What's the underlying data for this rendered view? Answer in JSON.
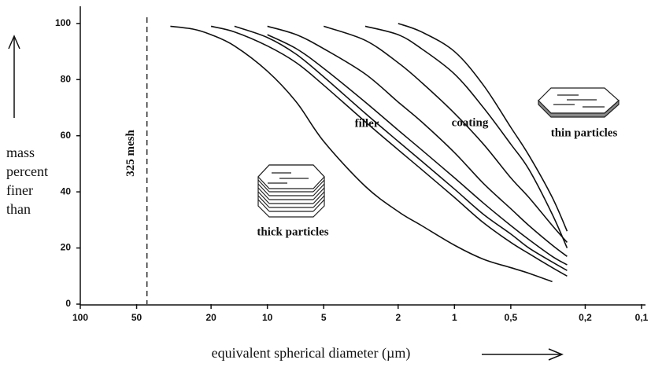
{
  "chart_data": {
    "type": "line",
    "xlabel": "equivalent spherical diameter (µm)",
    "ylabel": [
      "mass",
      "percent",
      "finer",
      "than"
    ],
    "log_x": true,
    "xlim": [
      100,
      0.1
    ],
    "ylim": [
      0,
      105
    ],
    "xticks": [
      100,
      50,
      20,
      10,
      5,
      2,
      1,
      {
        "value": 0.5,
        "label": "0,5"
      },
      {
        "value": 0.2,
        "label": "0,2"
      },
      {
        "value": 0.1,
        "label": "0,1"
      }
    ],
    "yticks": [
      0,
      20,
      40,
      60,
      80,
      100
    ],
    "mesh_line": {
      "x": 44,
      "label": "325 mesh"
    },
    "annotations": [
      "filler",
      "coating",
      "thin particles",
      "thick particles"
    ],
    "x": [
      33,
      25,
      20,
      15,
      10,
      7,
      5,
      3,
      2,
      1.5,
      1,
      0.7,
      0.5,
      0.4,
      0.3,
      0.25
    ],
    "series": [
      {
        "color": "#111",
        "values": [
          99,
          98,
          96,
          92,
          83,
          72,
          58,
          42,
          33,
          28,
          21,
          16,
          13,
          11,
          8,
          null
        ]
      },
      {
        "color": "#111",
        "values": [
          null,
          null,
          99,
          97,
          92,
          86,
          78,
          65,
          55,
          48,
          38,
          29,
          22,
          18,
          13,
          10
        ]
      },
      {
        "color": "#111",
        "values": [
          null,
          null,
          null,
          99,
          95,
          89,
          81,
          68,
          58,
          51,
          41,
          32,
          25,
          20,
          15,
          12
        ]
      },
      {
        "color": "#111",
        "values": [
          null,
          null,
          null,
          null,
          96,
          91,
          84,
          72,
          62,
          55,
          45,
          36,
          28,
          23,
          17,
          14
        ]
      },
      {
        "color": "#111",
        "values": [
          null,
          null,
          null,
          null,
          99,
          96,
          91,
          82,
          72,
          65,
          54,
          43,
          34,
          28,
          21,
          17
        ]
      },
      {
        "color": "#111",
        "values": [
          null,
          null,
          null,
          null,
          null,
          null,
          99,
          94,
          86,
          79,
          68,
          57,
          45,
          38,
          28,
          22
        ]
      },
      {
        "color": "#111",
        "values": [
          null,
          null,
          null,
          null,
          null,
          null,
          null,
          99,
          96,
          91,
          82,
          70,
          57,
          48,
          32,
          20
        ]
      },
      {
        "color": "#111",
        "values": [
          null,
          null,
          null,
          null,
          null,
          null,
          null,
          null,
          100,
          97,
          90,
          78,
          63,
          53,
          38,
          26
        ]
      }
    ]
  }
}
